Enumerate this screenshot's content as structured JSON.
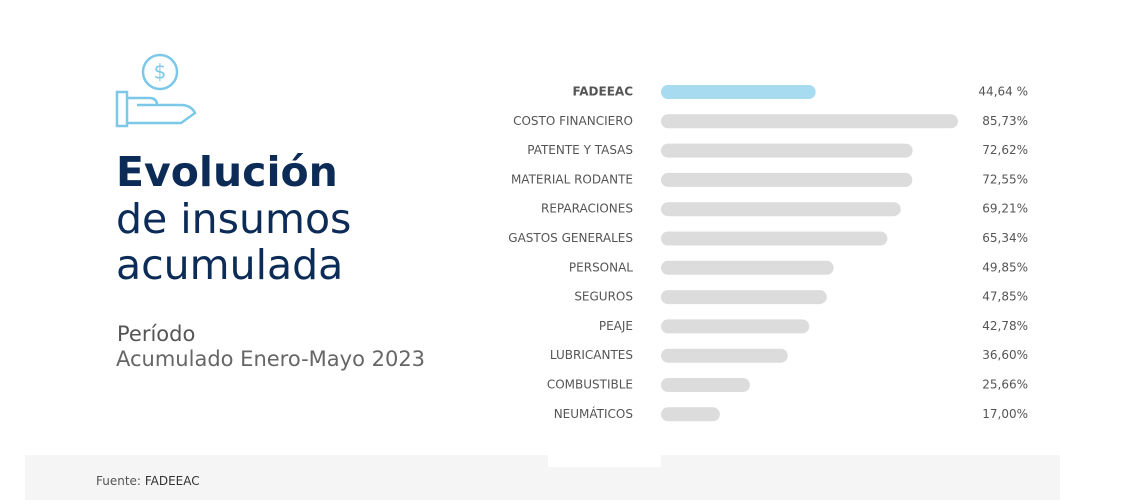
{
  "heading": [
    "Evolución",
    "de insumos",
    "acumulada"
  ],
  "period_label": "Período",
  "period": "Acumulado Enero-Mayo 2023",
  "source_label": "Fuente:",
  "source": "FADEEAC",
  "chart_data": {
    "type": "bar",
    "orientation": "horizontal",
    "categories": [
      "FADEEAC",
      "COSTO FINANCIERO",
      "PATENTE Y TASAS",
      "MATERIAL RODANTE",
      "REPARACIONES",
      "GASTOS GENERALES",
      "PERSONAL",
      "SEGUROS",
      "PEAJE",
      "LUBRICANTES",
      "COMBUSTIBLE",
      "NEUMÁTICOS"
    ],
    "values": [
      44.64,
      85.73,
      72.62,
      72.55,
      69.21,
      65.34,
      49.85,
      47.85,
      42.78,
      36.6,
      25.66,
      17.0
    ],
    "value_labels": [
      "44,64 %",
      "85,73%",
      "72,62%",
      "72,55%",
      "69,21%",
      "65,34%",
      "49,85%",
      "47,85%",
      "42,78%",
      "36,60%",
      "25,66%",
      "17,00%"
    ],
    "colors": [
      "#a6dbf0",
      "#dcdcdc",
      "#dcdcdc",
      "#dcdcdc",
      "#dcdcdc",
      "#dcdcdc",
      "#dcdcdc",
      "#dcdcdc",
      "#dcdcdc",
      "#dcdcdc",
      "#dcdcdc",
      "#dcdcdc"
    ]
  }
}
